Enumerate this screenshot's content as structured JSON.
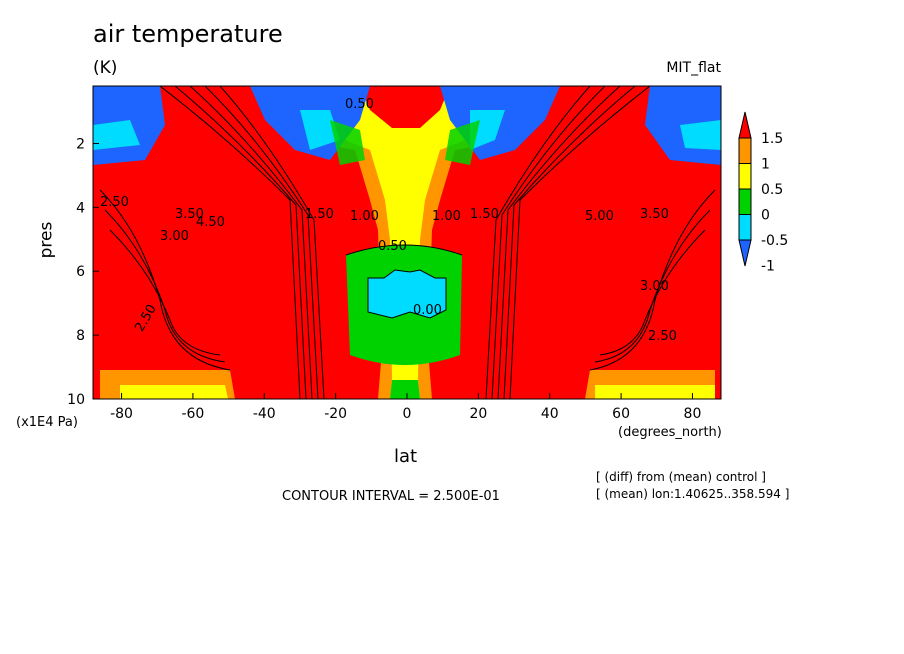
{
  "chart_data": {
    "type": "heatmap",
    "title": "air temperature",
    "units": "(K)",
    "dataset": "MIT_flat",
    "xlabel": "lat",
    "ylabel": "pres",
    "x_units": "(degrees_north)",
    "y_units": "(x1E4 Pa)",
    "xlim": [
      -88,
      88
    ],
    "ylim": [
      10,
      0.2
    ],
    "xticks": [
      -80,
      -60,
      -40,
      -20,
      0,
      20,
      40,
      60,
      80
    ],
    "yticks": [
      2,
      4,
      6,
      8,
      10
    ],
    "colorbar": {
      "levels": [
        -1,
        -0.5,
        0,
        0.5,
        1,
        1.5
      ],
      "labels": [
        "1.5",
        "1",
        "0.5",
        "0",
        "-0.5",
        "-1"
      ],
      "colors": [
        "#1e64ff",
        "#00dcff",
        "#00d200",
        "#ffff00",
        "#ff9600",
        "#ff0000"
      ]
    },
    "contour_labels": [
      "2.50",
      "3.00",
      "3.50",
      "4.50",
      "5.00",
      "0.50",
      "1.00",
      "1.50",
      "0.00"
    ],
    "contour_interval": "CONTOUR INTERVAL = 2.500E-01",
    "notes": [
      "[ (diff) from (mean) control ]",
      "[ (mean) lon:1.40625..358.594 ]"
    ]
  }
}
